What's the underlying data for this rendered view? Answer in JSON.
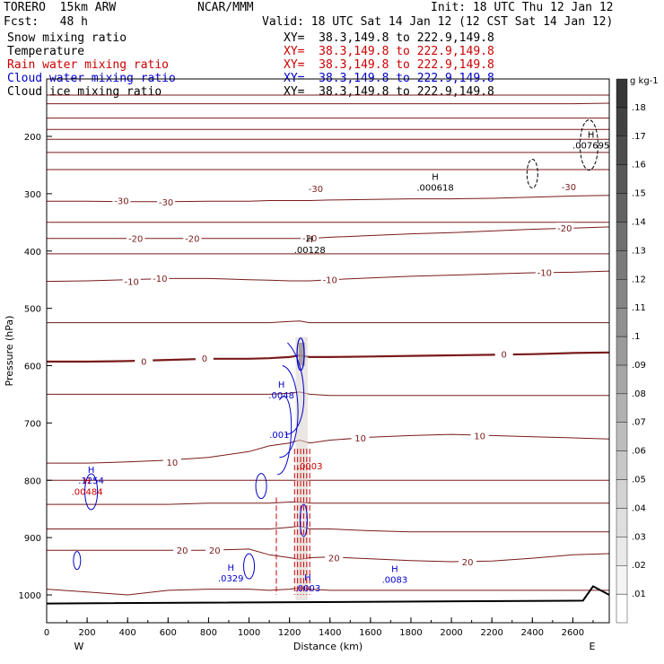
{
  "header": {
    "model": "TORERO  15km ARW",
    "org": "NCAR/MMM",
    "init": "Init: 18 UTC Thu 12 Jan 12",
    "fcst": "Fcst:   48 h",
    "valid": "Valid: 18 UTC Sat 14 Jan 12 (12 CST Sat 14 Jan 12)"
  },
  "legend": [
    {
      "name": "Snow mixing ratio",
      "color": "#000000",
      "xy": "XY=  38.3,149.8 to 222.9,149.8",
      "xycolor": "#000000"
    },
    {
      "name": "Temperature",
      "color": "#000000",
      "xy": "XY=  38.3,149.8 to 222.9,149.8",
      "xycolor": "#cc0000"
    },
    {
      "name": "Rain water mixing ratio",
      "color": "#cc0000",
      "xy": "XY=  38.3,149.8 to 222.9,149.8",
      "xycolor": "#cc0000"
    },
    {
      "name": "Cloud water mixing ratio",
      "color": "#0000cc",
      "xy": "XY=  38.3,149.8 to 222.9,149.8",
      "xycolor": "#0000cc"
    },
    {
      "name": "Cloud ice mixing ratio",
      "color": "#000000",
      "xy": "XY=  38.3,149.8 to 222.9,149.8",
      "xycolor": "#000000"
    }
  ],
  "chart_data": {
    "type": "cross-section",
    "xlabel": "Distance (km)",
    "ylabel": "Pressure (hPa)",
    "xlim": [
      0,
      2780
    ],
    "ylim": [
      1050,
      100
    ],
    "xticks": [
      "0",
      "100",
      "200",
      "300",
      "400",
      "500",
      "600",
      "700",
      "800",
      "900",
      "1000",
      "1100",
      "1200",
      "1300",
      "1400",
      "1500",
      "1600",
      "1700",
      "1800",
      "1900",
      "2000",
      "2100",
      "2200",
      "2300",
      "2400",
      "2500",
      "2600",
      "2700"
    ],
    "xtick_labels": [
      {
        "v": 0,
        "t": "0"
      },
      {
        "v": 200,
        "t": "200"
      },
      {
        "v": 400,
        "t": "400"
      },
      {
        "v": 600,
        "t": "600"
      },
      {
        "v": 800,
        "t": "800"
      },
      {
        "v": 1000,
        "t": "1000"
      },
      {
        "v": 1200,
        "t": "1200"
      },
      {
        "v": 1400,
        "t": "1400"
      },
      {
        "v": 1600,
        "t": "1600"
      },
      {
        "v": 1800,
        "t": "1800"
      },
      {
        "v": 2000,
        "t": "2000"
      },
      {
        "v": 2200,
        "t": "2200"
      },
      {
        "v": 2400,
        "t": "2400"
      },
      {
        "v": 2600,
        "t": "2600"
      }
    ],
    "yticks": [
      {
        "v": 200,
        "t": "200"
      },
      {
        "v": 300,
        "t": "300"
      },
      {
        "v": 400,
        "t": "400"
      },
      {
        "v": 500,
        "t": "500"
      },
      {
        "v": 600,
        "t": "600"
      },
      {
        "v": 700,
        "t": "700"
      },
      {
        "v": 800,
        "t": "800"
      },
      {
        "v": 900,
        "t": "900"
      },
      {
        "v": 1000,
        "t": "1000"
      }
    ],
    "west_label": "W",
    "east_label": "E",
    "temperature_labels": [
      {
        "x": 370,
        "p": 312,
        "t": "-30"
      },
      {
        "x": 590,
        "p": 314,
        "t": "-30"
      },
      {
        "x": 1330,
        "p": 291,
        "t": "-30"
      },
      {
        "x": 2580,
        "p": 288,
        "t": "-30"
      },
      {
        "x": 440,
        "p": 378,
        "t": "-20"
      },
      {
        "x": 720,
        "p": 378,
        "t": "-20"
      },
      {
        "x": 1300,
        "p": 377,
        "t": "-20"
      },
      {
        "x": 2560,
        "p": 360,
        "t": "-20"
      },
      {
        "x": 420,
        "p": 453,
        "t": "-10"
      },
      {
        "x": 560,
        "p": 447,
        "t": "-10"
      },
      {
        "x": 1400,
        "p": 450,
        "t": "-10"
      },
      {
        "x": 2460,
        "p": 437,
        "t": "-10"
      },
      {
        "x": 480,
        "p": 592,
        "t": "0"
      },
      {
        "x": 780,
        "p": 587,
        "t": "0"
      },
      {
        "x": 2260,
        "p": 580,
        "t": "0"
      },
      {
        "x": 1550,
        "p": 726,
        "t": "10"
      },
      {
        "x": 2140,
        "p": 722,
        "t": "10"
      },
      {
        "x": 620,
        "p": 768,
        "t": "10"
      },
      {
        "x": 670,
        "p": 922,
        "t": "20"
      },
      {
        "x": 830,
        "p": 922,
        "t": "20"
      },
      {
        "x": 1420,
        "p": 935,
        "t": "20"
      },
      {
        "x": 2080,
        "p": 942,
        "t": "20"
      }
    ],
    "temperature_isotherms_hPa_at_x": {
      "x": [
        0,
        200,
        400,
        600,
        800,
        1000,
        1100,
        1200,
        1250,
        1300,
        1400,
        1600,
        1800,
        2000,
        2200,
        2400,
        2600,
        2780
      ],
      "levels": [
        {
          "t": -60,
          "p": [
            128,
            128,
            128,
            128,
            128,
            128,
            128,
            128,
            128,
            128,
            128,
            128,
            128,
            128,
            128,
            128,
            128,
            128
          ]
        },
        {
          "t": -55,
          "p": [
            143,
            143,
            143,
            143,
            143,
            143,
            143,
            143,
            143,
            143,
            143,
            143,
            143,
            143,
            143,
            143,
            143,
            142
          ]
        },
        {
          "t": -50,
          "p": [
            168,
            168,
            168,
            168,
            168,
            168,
            168,
            168,
            168,
            168,
            168,
            168,
            168,
            168,
            168,
            168,
            168,
            168
          ]
        },
        {
          "t": -48,
          "p": [
            188,
            188,
            188,
            188,
            188,
            188,
            188,
            188,
            188,
            188,
            188,
            188,
            188,
            188,
            188,
            188,
            188,
            188
          ]
        },
        {
          "t": -45,
          "p": [
            205,
            205,
            205,
            205,
            205,
            205,
            205,
            205,
            205,
            205,
            205,
            205,
            205,
            205,
            205,
            205,
            205,
            205
          ]
        },
        {
          "t": -42,
          "p": [
            228,
            228,
            228,
            228,
            228,
            228,
            228,
            228,
            228,
            228,
            228,
            228,
            228,
            228,
            228,
            228,
            228,
            228
          ]
        },
        {
          "t": -38,
          "p": [
            258,
            258,
            258,
            258,
            258,
            258,
            258,
            258,
            258,
            258,
            258,
            258,
            258,
            258,
            258,
            258,
            258,
            258
          ]
        },
        {
          "t": -30,
          "p": [
            313,
            313,
            314,
            314,
            313,
            313,
            312,
            312,
            312,
            312,
            311,
            310,
            309,
            309,
            308,
            306,
            304,
            303
          ]
        },
        {
          "t": -25,
          "p": [
            350,
            350,
            350,
            350,
            350,
            350,
            350,
            350,
            350,
            350,
            350,
            350,
            350,
            350,
            350,
            350,
            350,
            350
          ]
        },
        {
          "t": -20,
          "p": [
            378,
            378,
            378,
            378,
            378,
            378,
            378,
            378,
            378,
            378,
            376,
            373,
            370,
            368,
            365,
            362,
            360,
            358
          ]
        },
        {
          "t": -15,
          "p": [
            405,
            405,
            405,
            405,
            405,
            405,
            405,
            405,
            405,
            405,
            405,
            405,
            405,
            405,
            405,
            405,
            405,
            405
          ]
        },
        {
          "t": -10,
          "p": [
            453,
            452,
            450,
            448,
            448,
            450,
            451,
            452,
            452,
            452,
            450,
            447,
            444,
            442,
            440,
            438,
            437,
            435
          ]
        },
        {
          "t": -5,
          "p": [
            525,
            525,
            525,
            525,
            525,
            525,
            525,
            523,
            522,
            525,
            525,
            525,
            525,
            525,
            525,
            525,
            525,
            525
          ]
        },
        {
          "t": 0,
          "p": [
            593,
            593,
            592,
            590,
            588,
            588,
            587,
            585,
            582,
            585,
            585,
            584,
            583,
            582,
            581,
            580,
            578,
            577
          ]
        },
        {
          "t": 5,
          "p": [
            650,
            650,
            650,
            650,
            650,
            650,
            650,
            648,
            646,
            650,
            652,
            652,
            652,
            652,
            652,
            652,
            652,
            652
          ]
        },
        {
          "t": 10,
          "p": [
            770,
            770,
            768,
            765,
            760,
            750,
            740,
            735,
            730,
            735,
            730,
            725,
            722,
            720,
            722,
            724,
            726,
            728
          ]
        },
        {
          "t": 12,
          "p": [
            800,
            800,
            800,
            800,
            800,
            800,
            800,
            800,
            800,
            800,
            800,
            800,
            800,
            800,
            800,
            800,
            800,
            800
          ]
        },
        {
          "t": 15,
          "p": [
            842,
            842,
            842,
            842,
            840,
            840,
            840,
            838,
            838,
            840,
            840,
            840,
            840,
            840,
            840,
            840,
            840,
            840
          ]
        },
        {
          "t": 18,
          "p": [
            885,
            885,
            885,
            885,
            885,
            885,
            885,
            882,
            880,
            885,
            885,
            888,
            890,
            890,
            890,
            890,
            890,
            890
          ]
        },
        {
          "t": 20,
          "p": [
            922,
            922,
            922,
            922,
            922,
            920,
            930,
            935,
            938,
            935,
            934,
            937,
            940,
            942,
            941,
            936,
            930,
            928
          ]
        },
        {
          "t": 23,
          "p": [
            990,
            995,
            1000,
            992,
            990,
            990,
            992,
            990,
            988,
            990,
            992,
            992,
            992,
            992,
            992,
            992,
            992,
            992
          ]
        }
      ]
    },
    "maxima_labels": [
      {
        "x": 220,
        "p": 787,
        "h": "H",
        "t": ".1254",
        "color": "#0000cc"
      },
      {
        "x": 200,
        "p": 807,
        "h": "H",
        "t": ".00484",
        "color": "#cc0000"
      },
      {
        "x": 1160,
        "p": 638,
        "h": "H",
        "t": ".0048",
        "color": "#0000cc"
      },
      {
        "x": 1150,
        "p": 707,
        "h": "",
        "t": ".001",
        "color": "#0000cc"
      },
      {
        "x": 1300,
        "p": 762,
        "h": "",
        "t": ".0003",
        "color": "#cc0000"
      },
      {
        "x": 1290,
        "p": 975,
        "h": "H",
        "t": ".0003",
        "color": "#0000cc"
      },
      {
        "x": 910,
        "p": 958,
        "h": "H",
        "t": ".0329",
        "color": "#0000cc"
      },
      {
        "x": 1720,
        "p": 960,
        "h": "H",
        "t": ".0083",
        "color": "#0000cc"
      },
      {
        "x": 1920,
        "p": 276,
        "h": "H",
        "t": ".000618",
        "color": "#000000"
      },
      {
        "x": 2690,
        "p": 202,
        "h": "H",
        "t": ".007695",
        "color": "#000000"
      },
      {
        "x": 1300,
        "p": 385,
        "h": "H",
        "t": ".00128",
        "color": "#000000"
      }
    ],
    "colorbar": {
      "unit": "g kg-1",
      "ticks": [
        ".01",
        ".02",
        ".03",
        ".04",
        ".05",
        ".06",
        ".07",
        ".08",
        ".09",
        ".1",
        ".11",
        ".12",
        ".13",
        ".14",
        ".15",
        ".16",
        ".17",
        ".18"
      ]
    }
  }
}
